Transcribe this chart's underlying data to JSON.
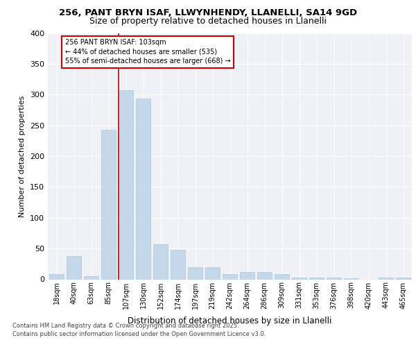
{
  "title1": "256, PANT BRYN ISAF, LLWYNHENDY, LLANELLI, SA14 9GD",
  "title2": "Size of property relative to detached houses in Llanelli",
  "xlabel": "Distribution of detached houses by size in Llanelli",
  "ylabel": "Number of detached properties",
  "categories": [
    "18sqm",
    "40sqm",
    "63sqm",
    "85sqm",
    "107sqm",
    "130sqm",
    "152sqm",
    "174sqm",
    "197sqm",
    "219sqm",
    "242sqm",
    "264sqm",
    "286sqm",
    "309sqm",
    "331sqm",
    "353sqm",
    "376sqm",
    "398sqm",
    "420sqm",
    "443sqm",
    "465sqm"
  ],
  "values": [
    8,
    38,
    5,
    243,
    307,
    293,
    57,
    48,
    20,
    20,
    8,
    12,
    12,
    8,
    3,
    3,
    3,
    2,
    0,
    3,
    3
  ],
  "bar_color": "#c5d8ea",
  "bar_edgecolor": "#aec6d8",
  "vline_color": "#cc0000",
  "vline_bar_index": 4,
  "annotation_text": "256 PANT BRYN ISAF: 103sqm\n← 44% of detached houses are smaller (535)\n55% of semi-detached houses are larger (668) →",
  "annotation_box_edgecolor": "#cc0000",
  "ylim": [
    0,
    400
  ],
  "yticks": [
    0,
    50,
    100,
    150,
    200,
    250,
    300,
    350,
    400
  ],
  "plot_bg": "#eef2f7",
  "footer1": "Contains HM Land Registry data © Crown copyright and database right 2025.",
  "footer2": "Contains public sector information licensed under the Open Government Licence v3.0."
}
